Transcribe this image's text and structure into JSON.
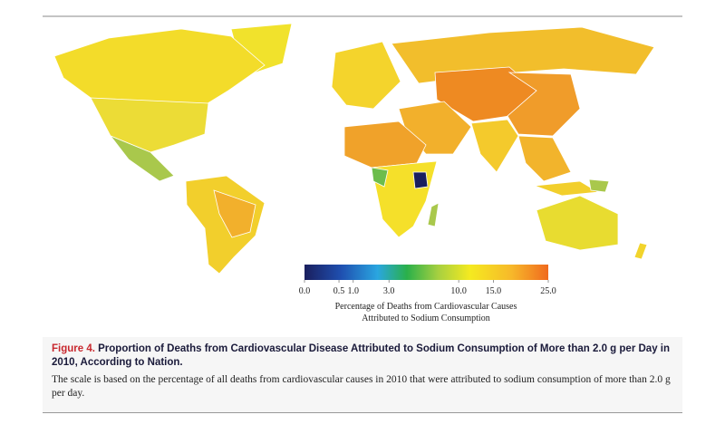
{
  "legend": {
    "title": [
      "Percentage of Deaths from Cardiovascular Causes",
      "Attributed to Sodium Consumption"
    ],
    "ticks": [
      {
        "value": 0,
        "label": "0.0"
      },
      {
        "value": 0.5,
        "label": "0.5"
      },
      {
        "value": 1,
        "label": "1.0"
      },
      {
        "value": 3,
        "label": "3.0"
      },
      {
        "value": 10,
        "label": "10.0"
      },
      {
        "value": 15,
        "label": "15.0"
      },
      {
        "value": 25,
        "label": "25.0"
      }
    ]
  },
  "caption": {
    "label": "Figure 4.",
    "title": "Proportion of Deaths from Cardiovascular Disease Attributed to Sodium Consumption of More than 2.0 g per Day in 2010, According to Nation.",
    "note": "The scale is based on the percentage of all deaths from cardiovascular causes in 2010 that were attributed to sodium consumption of more than 2.0 g per day."
  }
}
